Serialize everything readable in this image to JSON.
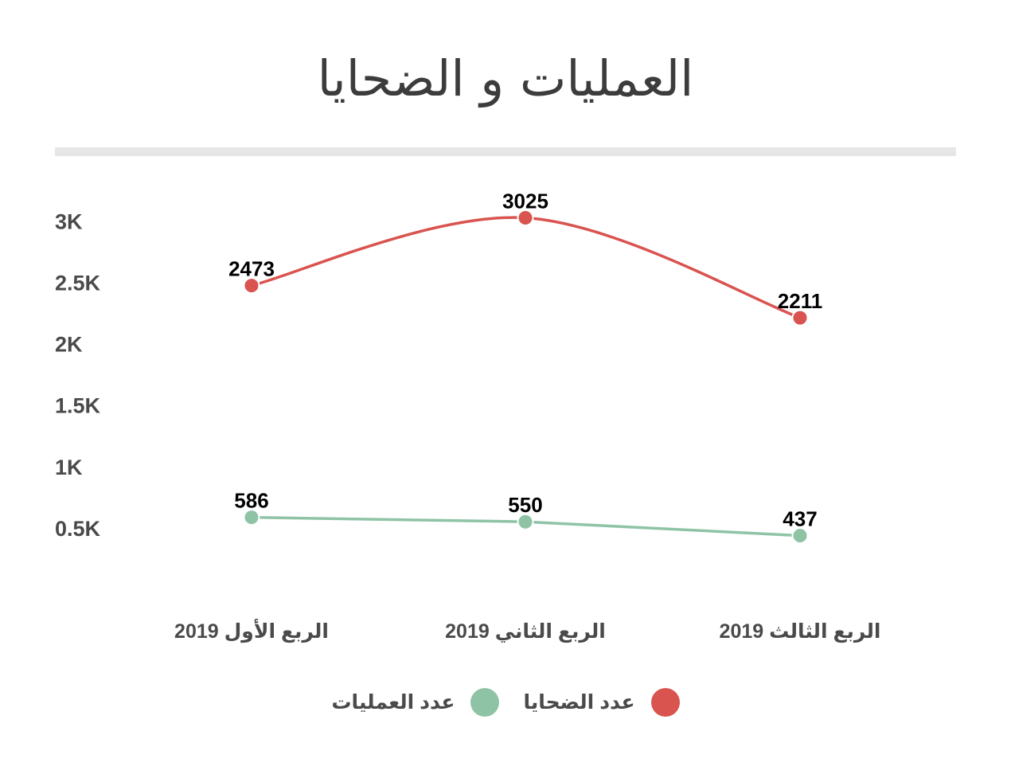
{
  "chart_data": {
    "type": "line",
    "title": "العمليات و الضحايا",
    "categories": [
      "الربع الأول 2019",
      "الربع الثاني 2019",
      "الربع الثالث 2019"
    ],
    "y_ticks": [
      "0.5K",
      "1K",
      "1.5K",
      "2K",
      "2.5K",
      "3K"
    ],
    "ylim": [
      300,
      3200
    ],
    "grid": false,
    "legend_position": "bottom",
    "series": [
      {
        "name": "عدد الضحايا",
        "values": [
          2473,
          3025,
          2211
        ],
        "color": "#d9534f",
        "smooth": true
      },
      {
        "name": "عدد العمليات",
        "values": [
          586,
          550,
          437
        ],
        "color": "#8fc3a6",
        "smooth": false
      }
    ]
  }
}
